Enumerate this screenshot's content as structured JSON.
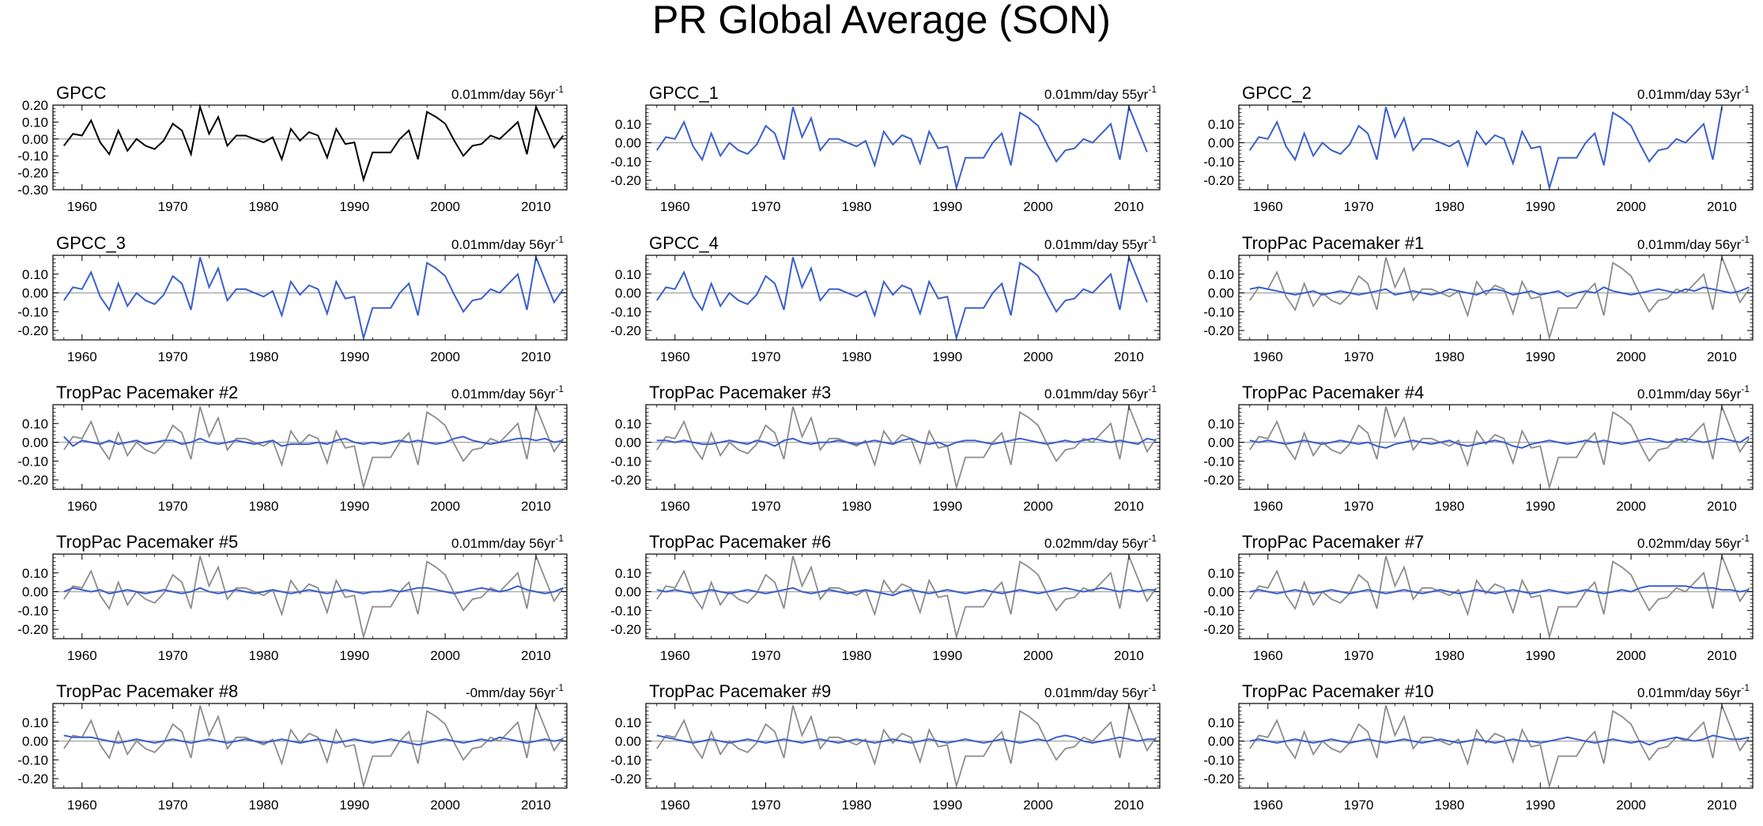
{
  "figure": {
    "title": "PR Global Average (SON)",
    "x_tick_labels": [
      "1960",
      "1970",
      "1980",
      "1990",
      "2000",
      "2010"
    ],
    "colors": {
      "observed": "#000000",
      "model": "#3a5fcd",
      "overlay": "#8c8c8c",
      "zero_line": "#a8a8a8",
      "axis": "#000000"
    }
  },
  "chart_data": [
    {
      "type": "line",
      "title": "GPCC",
      "trend": "0.01mm/day 56yr",
      "trend_exp": "-1",
      "x_start": 1958,
      "x_end": 2013,
      "ylim": [
        -0.3,
        0.2
      ],
      "yticks": [
        0.2,
        0.1,
        0.0,
        -0.1,
        -0.2,
        -0.3
      ],
      "xticks": [
        1960,
        1970,
        1980,
        1990,
        2000,
        2010
      ],
      "series_color": "observed",
      "show_overlay": false
    },
    {
      "type": "line",
      "title": "GPCC_1",
      "trend": "0.01mm/day 55yr",
      "trend_exp": "-1",
      "x_start": 1958,
      "x_end": 2012,
      "ylim": [
        -0.25,
        0.2
      ],
      "yticks": [
        0.1,
        0.0,
        -0.1,
        -0.2
      ],
      "xticks": [
        1960,
        1970,
        1980,
        1990,
        2000,
        2010
      ],
      "series_color": "model",
      "show_overlay": false
    },
    {
      "type": "line",
      "title": "GPCC_2",
      "trend": "0.01mm/day 53yr",
      "trend_exp": "-1",
      "x_start": 1958,
      "x_end": 2010,
      "ylim": [
        -0.25,
        0.2
      ],
      "yticks": [
        0.1,
        0.0,
        -0.1,
        -0.2
      ],
      "xticks": [
        1960,
        1970,
        1980,
        1990,
        2000,
        2010
      ],
      "series_color": "model",
      "show_overlay": false
    },
    {
      "type": "line",
      "title": "GPCC_3",
      "trend": "0.01mm/day 56yr",
      "trend_exp": "-1",
      "x_start": 1958,
      "x_end": 2013,
      "ylim": [
        -0.25,
        0.2
      ],
      "yticks": [
        0.1,
        0.0,
        -0.1,
        -0.2
      ],
      "xticks": [
        1960,
        1970,
        1980,
        1990,
        2000,
        2010
      ],
      "series_color": "model",
      "show_overlay": false
    },
    {
      "type": "line",
      "title": "GPCC_4",
      "trend": "0.01mm/day 55yr",
      "trend_exp": "-1",
      "x_start": 1958,
      "x_end": 2012,
      "ylim": [
        -0.25,
        0.2
      ],
      "yticks": [
        0.1,
        0.0,
        -0.1,
        -0.2
      ],
      "xticks": [
        1960,
        1970,
        1980,
        1990,
        2000,
        2010
      ],
      "series_color": "model",
      "show_overlay": false
    },
    {
      "type": "line",
      "title": "TropPac Pacemaker #1",
      "trend": "0.01mm/day 56yr",
      "trend_exp": "-1",
      "x_start": 1958,
      "x_end": 2013,
      "ylim": [
        -0.25,
        0.2
      ],
      "yticks": [
        0.1,
        0.0,
        -0.1,
        -0.2
      ],
      "xticks": [
        1960,
        1970,
        1980,
        1990,
        2000,
        2010
      ],
      "series_color": "model",
      "show_overlay": true,
      "values": [
        0.02,
        0.03,
        0.02,
        0.01,
        0.0,
        -0.01,
        0.0,
        0.01,
        -0.01,
        0.0,
        0.01,
        0.0,
        -0.01,
        0.0,
        0.01,
        0.02,
        -0.01,
        0.0,
        0.01,
        0.0,
        -0.01,
        0.0,
        0.02,
        0.01,
        0.0,
        -0.01,
        0.01,
        0.02,
        0.01,
        -0.01,
        0.0,
        0.01,
        -0.01,
        0.0,
        0.01,
        -0.02,
        0.0,
        0.01,
        0.0,
        0.03,
        0.01,
        0.0,
        -0.01,
        0.0,
        0.01,
        0.02,
        0.01,
        0.0,
        0.02,
        0.01,
        0.03,
        0.02,
        0.01,
        0.0,
        0.01,
        0.03
      ]
    },
    {
      "type": "line",
      "title": "TropPac Pacemaker #2",
      "trend": "0.01mm/day 56yr",
      "trend_exp": "-1",
      "x_start": 1958,
      "x_end": 2013,
      "ylim": [
        -0.25,
        0.2
      ],
      "yticks": [
        0.1,
        0.0,
        -0.1,
        -0.2
      ],
      "xticks": [
        1960,
        1970,
        1980,
        1990,
        2000,
        2010
      ],
      "series_color": "model",
      "show_overlay": true,
      "values": [
        0.03,
        -0.02,
        0.01,
        0.0,
        -0.01,
        0.01,
        -0.01,
        0.0,
        0.01,
        -0.01,
        0.0,
        0.01,
        0.01,
        -0.01,
        0.0,
        0.02,
        0.0,
        -0.01,
        0.0,
        0.01,
        0.0,
        -0.01,
        0.0,
        0.01,
        -0.02,
        -0.01,
        -0.01,
        -0.01,
        0.0,
        -0.01,
        0.01,
        0.02,
        0.0,
        -0.01,
        0.0,
        -0.01,
        0.0,
        0.01,
        0.0,
        0.01,
        0.0,
        -0.01,
        0.0,
        0.02,
        0.03,
        0.01,
        0.0,
        -0.01,
        0.0,
        0.01,
        0.02,
        0.02,
        0.01,
        0.02,
        0.0,
        0.01
      ]
    },
    {
      "type": "line",
      "title": "TropPac Pacemaker #3",
      "trend": "0.01mm/day 56yr",
      "trend_exp": "-1",
      "x_start": 1958,
      "x_end": 2013,
      "ylim": [
        -0.25,
        0.2
      ],
      "yticks": [
        0.1,
        0.0,
        -0.1,
        -0.2
      ],
      "xticks": [
        1960,
        1970,
        1980,
        1990,
        2000,
        2010
      ],
      "series_color": "model",
      "show_overlay": true,
      "values": [
        0.01,
        0.01,
        0.0,
        0.01,
        0.0,
        -0.01,
        -0.01,
        0.0,
        0.01,
        0.0,
        -0.01,
        0.01,
        0.0,
        -0.02,
        0.01,
        0.02,
        0.0,
        -0.01,
        0.0,
        0.0,
        0.01,
        0.0,
        -0.01,
        0.0,
        0.01,
        0.0,
        -0.01,
        0.01,
        0.02,
        0.0,
        -0.01,
        0.0,
        -0.02,
        0.0,
        0.01,
        0.01,
        0.0,
        -0.01,
        0.0,
        0.01,
        0.02,
        0.01,
        0.0,
        -0.01,
        0.0,
        0.01,
        0.0,
        0.01,
        0.02,
        0.01,
        0.0,
        0.01,
        0.0,
        -0.01,
        0.02,
        0.01
      ]
    },
    {
      "type": "line",
      "title": "TropPac Pacemaker #4",
      "trend": "0.01mm/day 56yr",
      "trend_exp": "-1",
      "x_start": 1958,
      "x_end": 2013,
      "ylim": [
        -0.25,
        0.2
      ],
      "yticks": [
        0.1,
        0.0,
        -0.1,
        -0.2
      ],
      "xticks": [
        1960,
        1970,
        1980,
        1990,
        2000,
        2010
      ],
      "series_color": "model",
      "show_overlay": true,
      "values": [
        0.01,
        0.0,
        0.01,
        0.0,
        -0.01,
        0.0,
        0.01,
        0.0,
        -0.01,
        0.0,
        0.01,
        0.0,
        -0.01,
        0.0,
        -0.02,
        -0.03,
        -0.01,
        0.0,
        0.01,
        0.0,
        -0.01,
        0.0,
        0.01,
        -0.01,
        -0.02,
        -0.01,
        0.0,
        0.01,
        0.0,
        -0.02,
        -0.03,
        -0.01,
        0.0,
        0.01,
        0.0,
        -0.01,
        0.0,
        0.01,
        0.0,
        0.01,
        0.0,
        -0.01,
        0.0,
        0.01,
        0.02,
        0.01,
        0.0,
        0.01,
        0.02,
        0.01,
        0.0,
        0.01,
        0.02,
        0.01,
        0.0,
        0.03
      ]
    },
    {
      "type": "line",
      "title": "TropPac Pacemaker #5",
      "trend": "0.01mm/day 56yr",
      "trend_exp": "-1",
      "x_start": 1958,
      "x_end": 2013,
      "ylim": [
        -0.25,
        0.2
      ],
      "yticks": [
        0.1,
        0.0,
        -0.1,
        -0.2
      ],
      "xticks": [
        1960,
        1970,
        1980,
        1990,
        2000,
        2010
      ],
      "series_color": "model",
      "show_overlay": true,
      "values": [
        0.0,
        0.02,
        0.01,
        0.0,
        0.01,
        -0.01,
        0.0,
        0.01,
        0.0,
        -0.01,
        0.0,
        0.01,
        0.0,
        -0.01,
        0.0,
        0.02,
        0.0,
        -0.01,
        0.0,
        0.01,
        0.0,
        -0.01,
        0.0,
        0.01,
        0.0,
        -0.01,
        0.0,
        0.01,
        0.0,
        -0.01,
        0.0,
        0.01,
        0.0,
        -0.01,
        0.0,
        0.0,
        0.01,
        0.0,
        0.01,
        0.02,
        0.02,
        0.01,
        0.0,
        -0.01,
        0.0,
        0.01,
        0.02,
        0.01,
        0.0,
        0.01,
        0.03,
        0.01,
        0.0,
        -0.01,
        0.0,
        0.02
      ]
    },
    {
      "type": "line",
      "title": "TropPac Pacemaker #6",
      "trend": "0.02mm/day 56yr",
      "trend_exp": "-1",
      "x_start": 1958,
      "x_end": 2013,
      "ylim": [
        -0.25,
        0.2
      ],
      "yticks": [
        0.1,
        0.0,
        -0.1,
        -0.2
      ],
      "xticks": [
        1960,
        1970,
        1980,
        1990,
        2000,
        2010
      ],
      "series_color": "model",
      "show_overlay": true,
      "values": [
        0.01,
        0.0,
        0.01,
        0.0,
        -0.01,
        0.0,
        0.01,
        0.0,
        -0.01,
        0.0,
        0.01,
        0.0,
        -0.01,
        0.0,
        0.01,
        0.02,
        0.0,
        -0.01,
        0.0,
        0.01,
        0.0,
        -0.01,
        0.0,
        0.01,
        0.0,
        -0.01,
        -0.02,
        0.0,
        0.01,
        0.0,
        -0.01,
        0.0,
        0.01,
        0.0,
        -0.01,
        0.0,
        0.01,
        0.0,
        -0.01,
        0.0,
        0.01,
        0.0,
        -0.01,
        0.0,
        0.01,
        0.02,
        0.01,
        0.0,
        0.01,
        0.02,
        0.01,
        0.0,
        0.01,
        0.0,
        0.01,
        0.01
      ]
    },
    {
      "type": "line",
      "title": "TropPac Pacemaker #7",
      "trend": "0.02mm/day 56yr",
      "trend_exp": "-1",
      "x_start": 1958,
      "x_end": 2013,
      "ylim": [
        -0.25,
        0.2
      ],
      "yticks": [
        0.1,
        0.0,
        -0.1,
        -0.2
      ],
      "xticks": [
        1960,
        1970,
        1980,
        1990,
        2000,
        2010
      ],
      "series_color": "model",
      "show_overlay": true,
      "values": [
        0.0,
        0.01,
        0.0,
        -0.01,
        0.0,
        0.01,
        0.0,
        -0.01,
        0.0,
        0.01,
        0.0,
        -0.01,
        0.0,
        0.01,
        0.0,
        -0.01,
        0.0,
        0.01,
        0.0,
        -0.01,
        0.0,
        0.01,
        0.0,
        -0.01,
        0.0,
        0.01,
        0.0,
        -0.01,
        0.0,
        0.01,
        0.0,
        -0.01,
        0.0,
        0.01,
        0.0,
        -0.01,
        0.0,
        0.01,
        0.0,
        -0.01,
        0.0,
        0.01,
        0.0,
        0.02,
        0.03,
        0.03,
        0.03,
        0.03,
        0.03,
        0.02,
        0.02,
        0.02,
        0.01,
        0.01,
        0.0,
        0.01
      ]
    },
    {
      "type": "line",
      "title": "TropPac Pacemaker #8",
      "trend": "-0mm/day 56yr",
      "trend_exp": "-1",
      "x_start": 1958,
      "x_end": 2013,
      "ylim": [
        -0.25,
        0.2
      ],
      "yticks": [
        0.1,
        0.0,
        -0.1,
        -0.2
      ],
      "xticks": [
        1960,
        1970,
        1980,
        1990,
        2000,
        2010
      ],
      "series_color": "model",
      "show_overlay": true,
      "values": [
        0.03,
        0.02,
        0.02,
        0.02,
        0.01,
        0.0,
        -0.01,
        0.0,
        0.01,
        0.0,
        -0.01,
        0.0,
        0.01,
        0.0,
        -0.01,
        0.0,
        0.01,
        0.0,
        -0.01,
        0.0,
        0.01,
        0.0,
        -0.01,
        0.0,
        0.01,
        0.0,
        -0.01,
        0.0,
        0.01,
        0.0,
        -0.01,
        0.0,
        0.01,
        0.0,
        -0.01,
        0.0,
        0.01,
        0.0,
        -0.01,
        -0.02,
        -0.01,
        0.0,
        0.01,
        0.0,
        -0.01,
        0.0,
        0.01,
        0.0,
        0.02,
        0.01,
        0.0,
        -0.01,
        0.0,
        0.01,
        0.0,
        0.01
      ]
    },
    {
      "type": "line",
      "title": "TropPac Pacemaker #9",
      "trend": "0.01mm/day 56yr",
      "trend_exp": "-1",
      "x_start": 1958,
      "x_end": 2013,
      "ylim": [
        -0.25,
        0.2
      ],
      "yticks": [
        0.1,
        0.0,
        -0.1,
        -0.2
      ],
      "xticks": [
        1960,
        1970,
        1980,
        1990,
        2000,
        2010
      ],
      "series_color": "model",
      "show_overlay": true,
      "values": [
        0.03,
        0.02,
        0.01,
        0.0,
        -0.01,
        0.0,
        0.01,
        0.0,
        -0.01,
        0.0,
        0.01,
        0.0,
        -0.01,
        0.0,
        0.01,
        0.0,
        -0.01,
        0.0,
        0.01,
        0.0,
        -0.01,
        0.0,
        0.01,
        0.0,
        -0.01,
        0.0,
        0.01,
        0.0,
        -0.01,
        0.0,
        0.01,
        0.0,
        -0.01,
        0.0,
        0.01,
        0.0,
        -0.01,
        0.0,
        0.01,
        0.0,
        -0.01,
        0.0,
        0.01,
        0.0,
        0.02,
        0.03,
        0.02,
        0.0,
        -0.01,
        0.0,
        0.01,
        0.02,
        0.01,
        0.0,
        0.01,
        0.01
      ]
    },
    {
      "type": "line",
      "title": "TropPac Pacemaker #10",
      "trend": "0.01mm/day 56yr",
      "trend_exp": "-1",
      "x_start": 1958,
      "x_end": 2013,
      "ylim": [
        -0.25,
        0.2
      ],
      "yticks": [
        0.1,
        0.0,
        -0.1,
        -0.2
      ],
      "xticks": [
        1960,
        1970,
        1980,
        1990,
        2000,
        2010
      ],
      "series_color": "model",
      "show_overlay": true,
      "values": [
        0.0,
        0.01,
        0.0,
        -0.01,
        0.0,
        0.01,
        0.0,
        -0.01,
        0.0,
        0.01,
        0.0,
        -0.01,
        0.0,
        0.01,
        0.0,
        -0.01,
        0.0,
        0.01,
        0.0,
        -0.01,
        0.0,
        0.01,
        0.0,
        -0.01,
        0.0,
        0.01,
        0.0,
        -0.01,
        0.0,
        0.01,
        0.0,
        0.0,
        -0.01,
        0.0,
        0.01,
        0.02,
        0.01,
        0.0,
        -0.01,
        0.0,
        0.01,
        0.0,
        -0.01,
        0.0,
        -0.02,
        0.0,
        0.01,
        0.02,
        0.01,
        0.0,
        0.01,
        0.03,
        0.02,
        0.01,
        0.01,
        0.02
      ]
    }
  ],
  "observed_series": {
    "name": "GPCC",
    "x_start": 1958,
    "values": [
      -0.04,
      0.03,
      0.02,
      0.11,
      -0.02,
      -0.09,
      0.05,
      -0.07,
      0.0,
      -0.04,
      -0.06,
      -0.01,
      0.09,
      0.05,
      -0.09,
      0.19,
      0.03,
      0.13,
      -0.04,
      0.02,
      0.02,
      0.0,
      -0.02,
      0.01,
      -0.12,
      0.06,
      -0.01,
      0.04,
      0.02,
      -0.11,
      0.06,
      -0.03,
      -0.02,
      -0.24,
      -0.08,
      -0.08,
      -0.08,
      0.0,
      0.05,
      -0.12,
      0.16,
      0.13,
      0.09,
      -0.01,
      -0.1,
      -0.04,
      -0.03,
      0.02,
      0.0,
      0.05,
      0.1,
      -0.09,
      0.19,
      0.07,
      -0.05,
      0.02
    ]
  }
}
